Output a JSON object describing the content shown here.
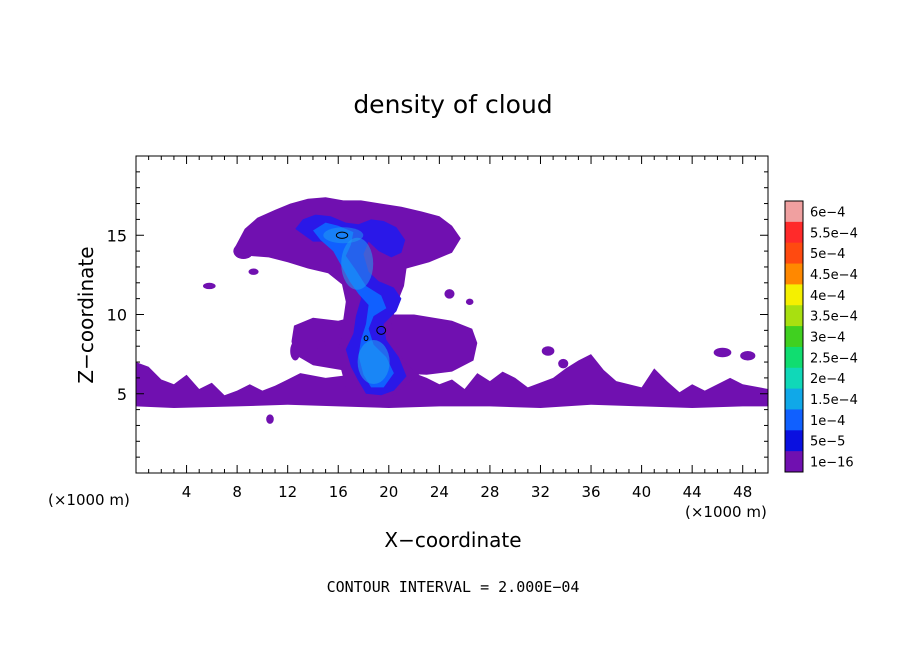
{
  "chart_data": {
    "type": "heatmap",
    "title": "density of cloud",
    "xlabel": "X−coordinate",
    "ylabel": "Z−coordinate",
    "x_unit_left": "(×1000 m)",
    "x_unit_right": "(×1000 m)",
    "xlim": [
      0,
      50
    ],
    "ylim": [
      0,
      20
    ],
    "x_ticks": [
      4,
      8,
      12,
      16,
      20,
      24,
      28,
      32,
      36,
      40,
      44,
      48
    ],
    "x_tick_labels": [
      "4",
      "8",
      "12",
      "16",
      "20",
      "24",
      "28",
      "32",
      "36",
      "40",
      "44",
      "48"
    ],
    "x_minor_step": 1,
    "y_ticks": [
      5,
      10,
      15
    ],
    "y_tick_labels": [
      "5",
      "10",
      "15"
    ],
    "y_minor_step": 1,
    "footer": "CONTOUR INTERVAL = 2.000E−04",
    "colorbar": {
      "labels": [
        "6e−4",
        "5.5e−4",
        "5e−4",
        "4.5e−4",
        "4e−4",
        "3.5e−4",
        "3e−4",
        "2.5e−4",
        "2e−4",
        "1.5e−4",
        "1e−4",
        "5e−5",
        "1e−16"
      ],
      "levels": [
        0.0006,
        0.00055,
        0.0005,
        0.00045,
        0.0004,
        0.00035,
        0.0003,
        0.00025,
        0.0002,
        0.00015,
        0.0001,
        5e-05,
        1e-16
      ],
      "colors": [
        "#f0a0a0",
        "#ff2a2a",
        "#ff4a10",
        "#ff8800",
        "#f5f000",
        "#a8e010",
        "#40d020",
        "#10dd70",
        "#10d8b8",
        "#10a8e8",
        "#1060ff",
        "#0a10e0",
        "#7010b0"
      ]
    },
    "fill_colors": {
      "background_cloud": "#7010b0",
      "low_density": "#2a18e8",
      "mid_density": "#1060ff",
      "high_density": "#20a0f0"
    },
    "regions": {
      "base_layer": [
        [
          0,
          4.2
        ],
        [
          3,
          4.1
        ],
        [
          8,
          4.2
        ],
        [
          12,
          4.3
        ],
        [
          16,
          4.2
        ],
        [
          20,
          4.1
        ],
        [
          24,
          4.2
        ],
        [
          28,
          4.2
        ],
        [
          32,
          4.1
        ],
        [
          36,
          4.3
        ],
        [
          40,
          4.2
        ],
        [
          44,
          4.1
        ],
        [
          48,
          4.2
        ],
        [
          50,
          4.2
        ],
        [
          50,
          5.3
        ],
        [
          48,
          5.6
        ],
        [
          47,
          6
        ],
        [
          45,
          5.2
        ],
        [
          44,
          5.6
        ],
        [
          43,
          5.1
        ],
        [
          42,
          5.8
        ],
        [
          41,
          6.6
        ],
        [
          40,
          5.4
        ],
        [
          38,
          5.8
        ],
        [
          37,
          6.5
        ],
        [
          36,
          7.5
        ],
        [
          35,
          7.1
        ],
        [
          34,
          6.6
        ],
        [
          33,
          6
        ],
        [
          31,
          5.4
        ],
        [
          30,
          6
        ],
        [
          29,
          6.4
        ],
        [
          28,
          5.8
        ],
        [
          27,
          6.3
        ],
        [
          26,
          5.3
        ],
        [
          25,
          5.9
        ],
        [
          24,
          5.6
        ],
        [
          23,
          6
        ],
        [
          22,
          6.3
        ],
        [
          21,
          5.4
        ],
        [
          19,
          5.9
        ],
        [
          17,
          6.2
        ],
        [
          15,
          6
        ],
        [
          13,
          6.3
        ],
        [
          12,
          5.9
        ],
        [
          11,
          5.5
        ],
        [
          10,
          5.2
        ],
        [
          9,
          5.6
        ],
        [
          8,
          5.2
        ],
        [
          7,
          4.9
        ],
        [
          6,
          5.7
        ],
        [
          5,
          5.3
        ],
        [
          4,
          6.2
        ],
        [
          3,
          5.6
        ],
        [
          2,
          5.9
        ],
        [
          1,
          6.7
        ],
        [
          0,
          7
        ]
      ],
      "mid_layer": [
        [
          12.5,
          9.3
        ],
        [
          14,
          9.8
        ],
        [
          16,
          9.6
        ],
        [
          18,
          10
        ],
        [
          22,
          10
        ],
        [
          25,
          9.6
        ],
        [
          26.6,
          9.1
        ],
        [
          27,
          8.2
        ],
        [
          26.7,
          7.1
        ],
        [
          25,
          6.4
        ],
        [
          23,
          6.2
        ],
        [
          20,
          6.3
        ],
        [
          17,
          6.4
        ],
        [
          14,
          6.8
        ],
        [
          12.5,
          7.5
        ],
        [
          12.3,
          8.3
        ]
      ],
      "upper_anvil": [
        [
          7.8,
          14.2
        ],
        [
          8.6,
          15.4
        ],
        [
          9.6,
          16.1
        ],
        [
          11,
          16.6
        ],
        [
          12.2,
          17
        ],
        [
          13.6,
          17.3
        ],
        [
          15,
          17.4
        ],
        [
          16.4,
          17.2
        ],
        [
          17.8,
          17.2
        ],
        [
          19.4,
          17
        ],
        [
          21,
          16.8
        ],
        [
          22.6,
          16.5
        ],
        [
          24,
          16.2
        ],
        [
          25,
          15.6
        ],
        [
          25.7,
          14.8
        ],
        [
          25,
          13.9
        ],
        [
          23.2,
          13.3
        ],
        [
          21.4,
          12.9
        ],
        [
          21.2,
          11.8
        ],
        [
          20.6,
          10.6
        ],
        [
          20.2,
          9.4
        ],
        [
          20.6,
          8.1
        ],
        [
          21.2,
          7
        ],
        [
          22.4,
          6.2
        ],
        [
          21,
          5.3
        ],
        [
          19.8,
          4.6
        ],
        [
          18.4,
          4.3
        ],
        [
          17.1,
          4.5
        ],
        [
          16.6,
          5.4
        ],
        [
          16.2,
          6.6
        ],
        [
          15.9,
          7.6
        ],
        [
          16.3,
          8.6
        ],
        [
          16.4,
          9.7
        ],
        [
          16.6,
          10.8
        ],
        [
          16.3,
          11.9
        ],
        [
          15.2,
          12.6
        ],
        [
          13.6,
          12.9
        ],
        [
          12,
          13.3
        ],
        [
          10.5,
          13.6
        ],
        [
          9,
          13.7
        ]
      ],
      "dense_core": [
        [
          12.6,
          15.4
        ],
        [
          13.2,
          16
        ],
        [
          14.2,
          16.3
        ],
        [
          15.4,
          16.2
        ],
        [
          16.6,
          15.8
        ],
        [
          17.6,
          15.7
        ],
        [
          18.6,
          16
        ],
        [
          19.6,
          15.9
        ],
        [
          20.6,
          15.5
        ],
        [
          21.3,
          14.7
        ],
        [
          21,
          13.9
        ],
        [
          20.2,
          13.6
        ],
        [
          19.2,
          14
        ],
        [
          18.4,
          14.6
        ],
        [
          18,
          13.8
        ],
        [
          18.4,
          12.7
        ],
        [
          19.2,
          12.1
        ],
        [
          20.4,
          11.7
        ],
        [
          21,
          11
        ],
        [
          20.6,
          10.2
        ],
        [
          19.6,
          9.4
        ],
        [
          19.8,
          8.4
        ],
        [
          20.8,
          7.3
        ],
        [
          21.4,
          6.1
        ],
        [
          20.4,
          5.2
        ],
        [
          19.4,
          4.9
        ],
        [
          18.2,
          5
        ],
        [
          17.6,
          5.8
        ],
        [
          17,
          6.7
        ],
        [
          16.6,
          7.8
        ],
        [
          17.2,
          8.8
        ],
        [
          17.4,
          9.9
        ],
        [
          17.8,
          11
        ],
        [
          17.6,
          12
        ],
        [
          17,
          12.8
        ],
        [
          16.4,
          13.4
        ],
        [
          16,
          14.2
        ],
        [
          15,
          14.6
        ],
        [
          14,
          14.6
        ]
      ],
      "bright_core": [
        [
          14,
          15.3
        ],
        [
          15,
          15.8
        ],
        [
          16,
          15.6
        ],
        [
          17.2,
          15.2
        ],
        [
          17,
          14.4
        ],
        [
          16.6,
          13.7
        ],
        [
          17.4,
          12.8
        ],
        [
          18.2,
          11.8
        ],
        [
          19.4,
          11.2
        ],
        [
          19.8,
          10.4
        ],
        [
          18.8,
          9.9
        ],
        [
          18.4,
          9.1
        ],
        [
          18.8,
          8.1
        ],
        [
          19.8,
          7.3
        ],
        [
          20.4,
          6.3
        ],
        [
          19.6,
          5.4
        ],
        [
          18.6,
          5.4
        ],
        [
          18,
          6.2
        ],
        [
          17.6,
          7.4
        ],
        [
          17.8,
          8.4
        ],
        [
          18.2,
          9.4
        ],
        [
          18.4,
          10.6
        ],
        [
          17.6,
          11.3
        ],
        [
          16.9,
          12.1
        ],
        [
          16.3,
          13
        ],
        [
          15.6,
          14
        ],
        [
          14.6,
          14.7
        ]
      ],
      "blobs": [
        [
          5.8,
          11.8,
          0.5,
          0.2
        ],
        [
          8.5,
          14,
          0.8,
          0.5
        ],
        [
          9.3,
          12.7,
          0.4,
          0.2
        ],
        [
          14.6,
          8.1,
          0.4,
          0.3
        ],
        [
          12.6,
          7.7,
          0.4,
          0.6
        ],
        [
          24.8,
          11.3,
          0.4,
          0.3
        ],
        [
          26.4,
          10.8,
          0.3,
          0.2
        ],
        [
          10.6,
          3.4,
          0.3,
          0.3
        ],
        [
          32.6,
          7.7,
          0.5,
          0.3
        ],
        [
          33.8,
          6.9,
          0.4,
          0.3
        ],
        [
          46.4,
          7.6,
          0.7,
          0.3
        ],
        [
          48.4,
          7.4,
          0.6,
          0.3
        ]
      ],
      "contours": [
        [
          16.3,
          15
        ],
        [
          0.45,
          0.2
        ],
        [
          19.4,
          9
        ],
        [
          0.35,
          0.25
        ],
        [
          18.2,
          8.5
        ],
        [
          0.15,
          0.15
        ]
      ]
    }
  }
}
